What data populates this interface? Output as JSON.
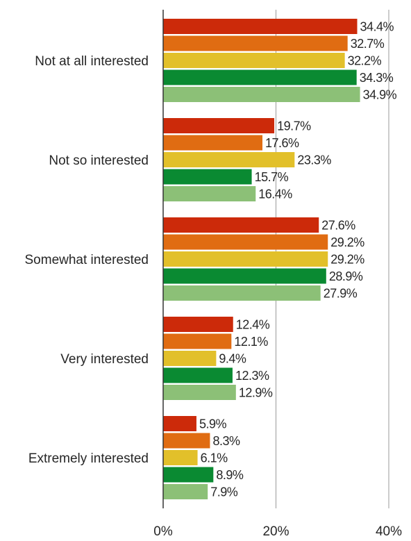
{
  "chart_data": {
    "type": "bar",
    "orientation": "horizontal",
    "categories": [
      "Not at all interested",
      "Not so interested",
      "Somewhat interested",
      "Very interested",
      "Extremely interested"
    ],
    "series": [
      {
        "values": [
          34.4,
          19.7,
          27.6,
          12.4,
          5.9
        ],
        "color": "#cc2a0a"
      },
      {
        "values": [
          32.7,
          17.6,
          29.2,
          12.1,
          8.3
        ],
        "color": "#e06c12"
      },
      {
        "values": [
          32.2,
          23.3,
          29.2,
          9.4,
          6.1
        ],
        "color": "#e2c02a"
      },
      {
        "values": [
          34.3,
          15.7,
          28.9,
          12.3,
          8.9
        ],
        "color": "#0a8a32"
      },
      {
        "values": [
          34.9,
          16.4,
          27.9,
          12.9,
          7.9
        ],
        "color": "#8cc077"
      }
    ],
    "value_suffix": "%",
    "x_ticks": [
      "0%",
      "20%",
      "40%"
    ],
    "xlim": [
      0,
      40
    ],
    "grid": "vertical",
    "legend": "none",
    "title": "",
    "xlabel": "",
    "ylabel": ""
  }
}
